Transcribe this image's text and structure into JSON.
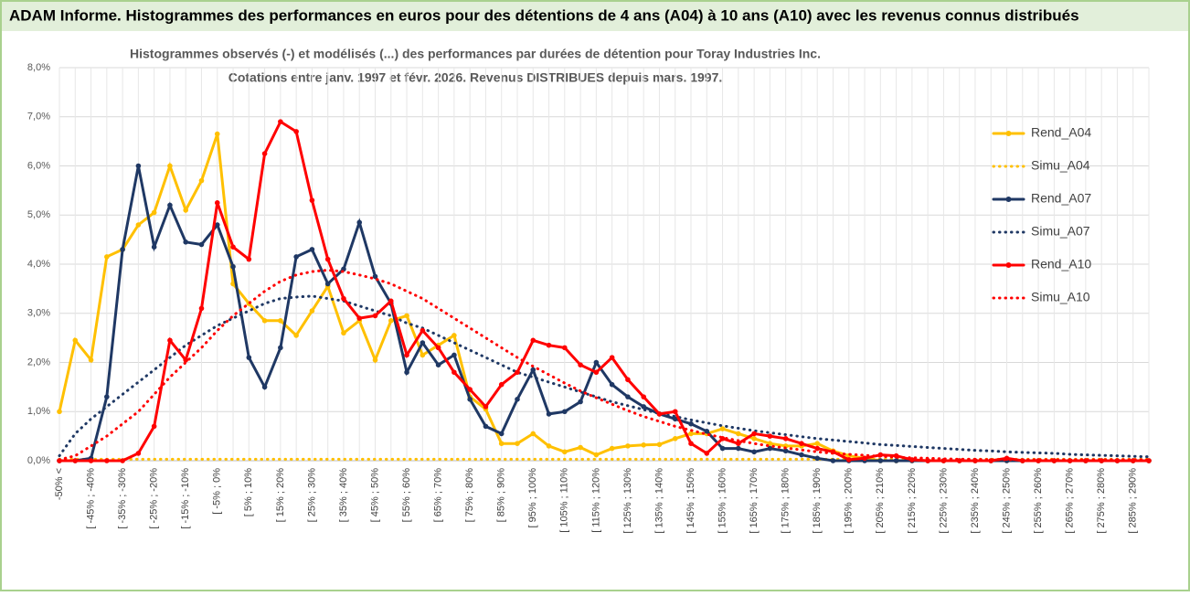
{
  "chart_data": {
    "type": "line",
    "header": "ADAM Informe. Histogrammes des performances en euros pour des détentions de 4 ans (A04) à 10 ans (A10) avec les revenus connus distribués",
    "title": "Histogrammes observés (-) et modélisés (...) des performances par durées de détention pour Toray Industries Inc.",
    "subtitle": "Cotations entre janv. 1997 et févr. 2026. Revenus DISTRIBUES depuis mars. 1997.",
    "categories": [
      "-50% <",
      null,
      "[ -45% ; -40%",
      null,
      "[ -35% ; -30%",
      null,
      "[ -25% ; -20%",
      null,
      "[ -15% ; -10%",
      null,
      "[ -5% ; 0%",
      null,
      "[ 5% ; 10%",
      null,
      "[ 15% ; 20%",
      null,
      "[ 25% ; 30%",
      null,
      "[ 35% ; 40%",
      null,
      "[ 45% ; 50%",
      null,
      "[ 55% ; 60%",
      null,
      "[ 65% ; 70%",
      null,
      "[ 75% ; 80%",
      null,
      "[ 85% ; 90%",
      null,
      "[ 95% ; 100%",
      null,
      "[ 105% ; 110%",
      null,
      "[ 115% ; 120%",
      null,
      "[ 125% ; 130%",
      null,
      "[ 135% ; 140%",
      null,
      "[ 145% ; 150%",
      null,
      "[ 155% ; 160%",
      null,
      "[ 165% ; 170%",
      null,
      "[ 175% ; 180%",
      null,
      "[ 185% ; 190%",
      null,
      "[ 195% ; 200%",
      null,
      "[ 205% ; 210%",
      null,
      "[ 215% ; 220%",
      null,
      "[ 225% ; 230%",
      null,
      "[ 235% ; 240%",
      null,
      "[ 245% ; 250%",
      null,
      "[ 255% ; 260%",
      null,
      "[ 265% ; 270%",
      null,
      "[ 275% ; 280%",
      null,
      "[ 285% ; 290%",
      null
    ],
    "ylim": [
      0,
      8
    ],
    "yticks": [
      {
        "value": 0,
        "label": "0,0%"
      },
      {
        "value": 1,
        "label": "1,0%"
      },
      {
        "value": 2,
        "label": "2,0%"
      },
      {
        "value": 3,
        "label": "3,0%"
      },
      {
        "value": 4,
        "label": "4,0%"
      },
      {
        "value": 5,
        "label": "5,0%"
      },
      {
        "value": 6,
        "label": "6,0%"
      },
      {
        "value": 7,
        "label": "7,0%"
      },
      {
        "value": 8,
        "label": "8,0%"
      }
    ],
    "grid": true,
    "legend": "right",
    "series": [
      {
        "name": "Rend_A04",
        "color": "#ffc000",
        "style": "solid",
        "values": [
          1.0,
          2.45,
          2.05,
          4.15,
          4.3,
          4.8,
          5.05,
          6.0,
          5.1,
          5.7,
          6.65,
          3.6,
          3.2,
          2.85,
          2.85,
          2.55,
          3.05,
          3.55,
          2.6,
          2.85,
          2.05,
          2.85,
          2.95,
          2.15,
          2.35,
          2.55,
          1.3,
          1.05,
          0.35,
          0.35,
          0.55,
          0.3,
          0.18,
          0.27,
          0.12,
          0.25,
          0.3,
          0.32,
          0.33,
          0.45,
          0.55,
          0.55,
          0.65,
          0.55,
          0.45,
          0.35,
          0.3,
          0.3,
          0.35,
          0.2,
          0.1,
          0.05,
          0,
          0,
          0,
          0,
          0,
          0,
          0,
          0,
          0,
          0,
          0,
          0,
          0,
          0,
          0,
          0,
          0,
          0
        ]
      },
      {
        "name": "Simu_A04",
        "color": "#ffc000",
        "style": "dotted",
        "values": [
          0.03,
          0.03,
          0.03,
          0.03,
          0.03,
          0.03,
          0.03,
          0.03,
          0.03,
          0.03,
          0.03,
          0.03,
          0.03,
          0.03,
          0.03,
          0.03,
          0.03,
          0.03,
          0.03,
          0.03,
          0.03,
          0.03,
          0.03,
          0.03,
          0.03,
          0.03,
          0.03,
          0.03,
          0.03,
          0.03,
          0.03,
          0.03,
          0.03,
          0.03,
          0.03,
          0.03,
          0.03,
          0.03,
          0.03,
          0.03,
          0.03,
          0.03,
          0.03,
          0.03,
          0.03,
          0.03,
          0.03,
          0.03,
          0.03,
          0.03,
          0.03,
          0.03,
          0.03,
          0.03,
          0.03,
          0.03,
          0.03,
          0.03,
          0.03,
          0.03,
          0.03,
          0.03,
          0.03,
          0.03,
          0.03,
          0.03,
          0.03,
          0.03,
          0.03,
          0.03
        ]
      },
      {
        "name": "Rend_A07",
        "color": "#1f3864",
        "style": "solid",
        "values": [
          0,
          0,
          0.05,
          1.3,
          4.3,
          6.0,
          4.35,
          5.2,
          4.45,
          4.4,
          4.8,
          3.95,
          2.1,
          1.5,
          2.3,
          4.15,
          4.3,
          3.6,
          3.9,
          4.85,
          3.75,
          3.2,
          1.8,
          2.4,
          1.95,
          2.15,
          1.25,
          0.7,
          0.55,
          1.25,
          1.85,
          0.95,
          1.0,
          1.2,
          2.0,
          1.55,
          1.3,
          1.1,
          0.95,
          0.85,
          0.75,
          0.6,
          0.25,
          0.25,
          0.18,
          0.25,
          0.2,
          0.12,
          0.05,
          0,
          0,
          0,
          0,
          0,
          0,
          0,
          0,
          0,
          0,
          0,
          0,
          0,
          0,
          0,
          0,
          0,
          0,
          0,
          0,
          0
        ]
      },
      {
        "name": "Simu_A07",
        "color": "#1f3864",
        "style": "dotted",
        "values": [
          0.1,
          0.55,
          0.85,
          1.1,
          1.35,
          1.6,
          1.85,
          2.1,
          2.35,
          2.55,
          2.75,
          2.9,
          3.05,
          3.2,
          3.3,
          3.33,
          3.35,
          3.3,
          3.25,
          3.15,
          3.05,
          2.95,
          2.8,
          2.7,
          2.55,
          2.4,
          2.25,
          2.1,
          1.95,
          1.8,
          1.7,
          1.6,
          1.5,
          1.4,
          1.3,
          1.2,
          1.12,
          1.04,
          0.96,
          0.9,
          0.83,
          0.77,
          0.71,
          0.66,
          0.61,
          0.57,
          0.53,
          0.49,
          0.45,
          0.42,
          0.39,
          0.36,
          0.33,
          0.31,
          0.29,
          0.27,
          0.25,
          0.23,
          0.21,
          0.2,
          0.18,
          0.17,
          0.16,
          0.15,
          0.13,
          0.12,
          0.11,
          0.1,
          0.09,
          0.08
        ]
      },
      {
        "name": "Rend_A10",
        "color": "#ff0000",
        "style": "solid",
        "values": [
          0,
          0,
          0,
          0,
          0,
          0.15,
          0.7,
          2.45,
          2.05,
          3.1,
          5.25,
          4.35,
          4.1,
          6.25,
          6.9,
          6.7,
          5.3,
          4.1,
          3.3,
          2.9,
          2.95,
          3.25,
          2.15,
          2.65,
          2.3,
          1.8,
          1.45,
          1.1,
          1.55,
          1.8,
          2.45,
          2.35,
          2.3,
          1.95,
          1.8,
          2.1,
          1.65,
          1.3,
          0.95,
          1.0,
          0.35,
          0.15,
          0.45,
          0.35,
          0.55,
          0.5,
          0.45,
          0.35,
          0.25,
          0.18,
          0.02,
          0.05,
          0.12,
          0.1,
          0.02,
          0,
          0,
          0,
          0,
          0,
          0.05,
          0,
          0,
          0,
          0,
          0,
          0,
          0,
          0,
          0
        ]
      },
      {
        "name": "Simu_A10",
        "color": "#ff0000",
        "style": "dotted",
        "values": [
          0.02,
          0.1,
          0.3,
          0.5,
          0.75,
          1.0,
          1.35,
          1.7,
          2.0,
          2.3,
          2.65,
          2.95,
          3.2,
          3.45,
          3.65,
          3.78,
          3.85,
          3.88,
          3.85,
          3.78,
          3.7,
          3.6,
          3.45,
          3.3,
          3.1,
          2.9,
          2.7,
          2.5,
          2.3,
          2.1,
          1.92,
          1.75,
          1.58,
          1.42,
          1.28,
          1.15,
          1.02,
          0.9,
          0.8,
          0.7,
          0.62,
          0.54,
          0.47,
          0.41,
          0.35,
          0.3,
          0.26,
          0.22,
          0.18,
          0.15,
          0.13,
          0.11,
          0.09,
          0.07,
          0.06,
          0.05,
          0.04,
          0.03,
          0.03,
          0.02,
          0.02,
          0.02,
          0.02,
          0.02,
          0.02,
          0.02,
          0.02,
          0.02,
          0.02,
          0.02
        ]
      }
    ]
  }
}
